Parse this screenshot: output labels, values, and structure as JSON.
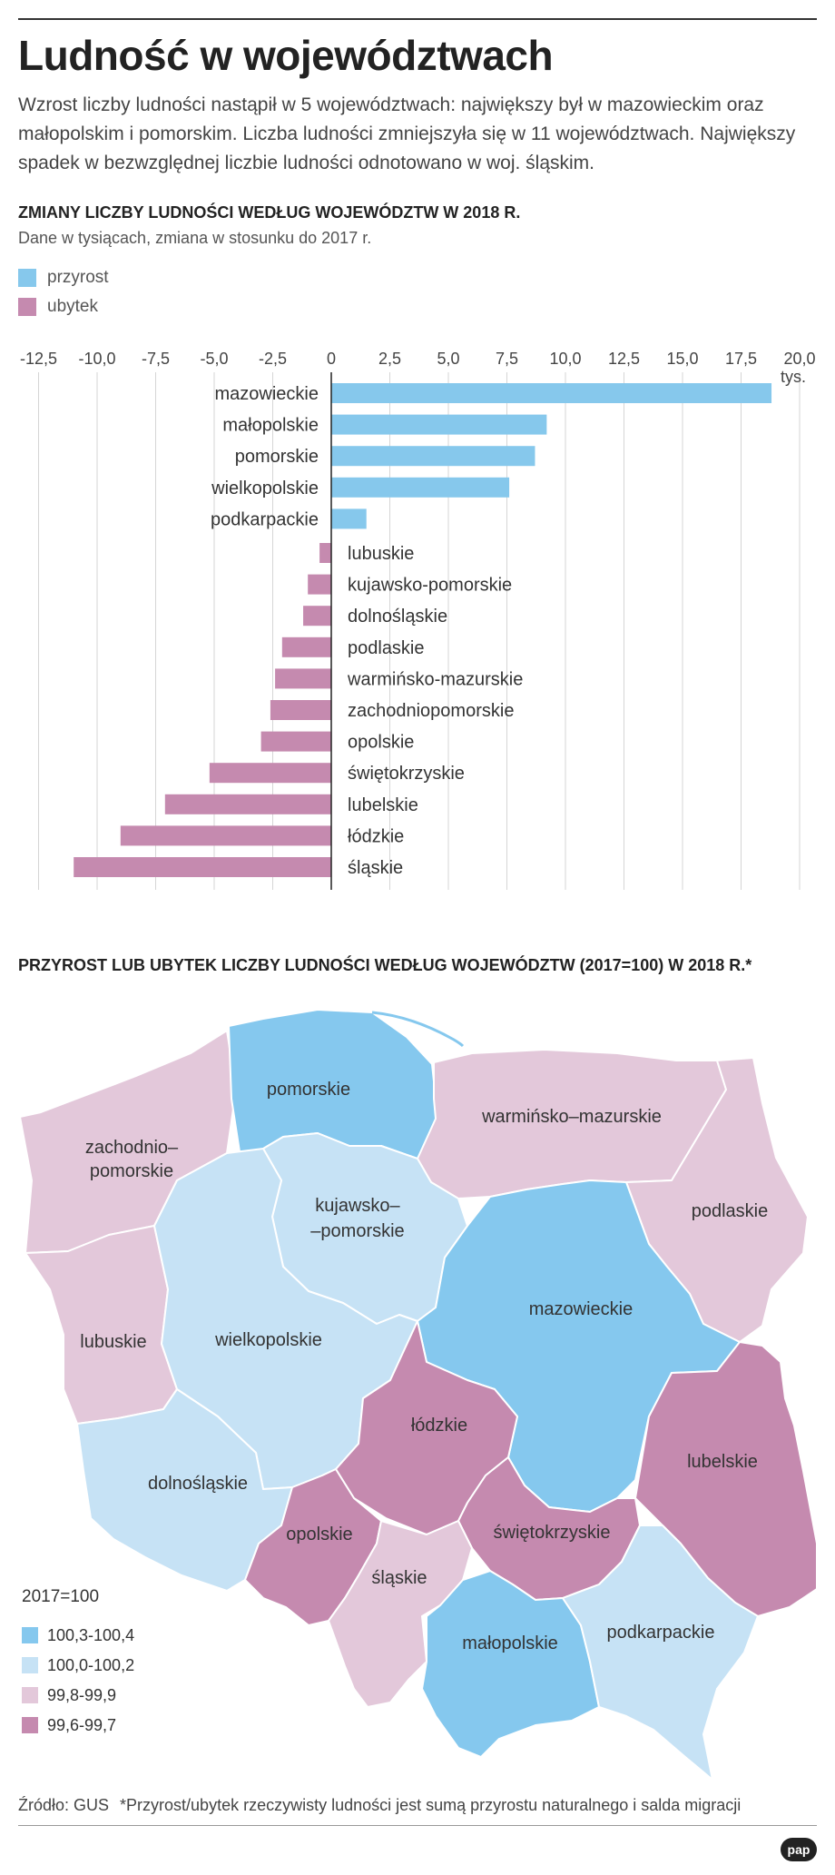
{
  "title": "Ludność w województwach",
  "lead": "Wzrost liczby ludności nastąpił w 5 województwach: największy był w mazowieckim oraz małopolskim i pomorskim. Liczba ludności zmniejszyła się w 11 województwach. Największy spadek w bezwzględnej liczbie ludności odnotowano w woj. śląskim.",
  "chart_section": {
    "title": "ZMIANY LICZBY LUDNOŚCI WEDŁUG WOJEWÓDZTW W 2018 R.",
    "subtitle": "Dane w tysiącach, zmiana w stosunku do 2017 r.",
    "legend": {
      "increase": "przyrost",
      "decrease": "ubytek"
    }
  },
  "colors": {
    "increase": "#86c8ec",
    "decrease": "#c58aaf",
    "map_100_3": "#85c8ee",
    "map_100_0": "#c6e2f5",
    "map_99_8": "#e3c8da",
    "map_99_6": "#c58aaf"
  },
  "chart_data": {
    "type": "bar",
    "orientation": "horizontal",
    "title": "ZMIANY LICZBY LUDNOŚCI WEDŁUG WOJEWÓDZTW W 2018 R.",
    "subtitle": "Dane w tysiącach, zmiana w stosunku do 2017 r.",
    "unit": "tys.",
    "xlim": [
      -12.5,
      20.0
    ],
    "ticks": [
      "-12,5",
      "-10,0",
      "-7,5",
      "-5,0",
      "-2,5",
      "0",
      "2,5",
      "5,0",
      "7,5",
      "10,0",
      "12,5",
      "15,0",
      "17,5",
      "20,0"
    ],
    "tick_values": [
      -12.5,
      -10,
      -7.5,
      -5,
      -2.5,
      0,
      2.5,
      5,
      7.5,
      10,
      12.5,
      15,
      17.5,
      20
    ],
    "grid": true,
    "categories": [
      "mazowieckie",
      "małopolskie",
      "pomorskie",
      "wielkopolskie",
      "podkarpackie",
      "lubuskie",
      "kujawsko-pomorskie",
      "dolnośląskie",
      "podlaskie",
      "warmińsko-mazurskie",
      "zachodniopomorskie",
      "opolskie",
      "świętokrzyskie",
      "lubelskie",
      "łódzkie",
      "śląskie"
    ],
    "values": [
      18.8,
      9.2,
      8.7,
      7.6,
      1.5,
      -0.5,
      -1.0,
      -1.2,
      -2.1,
      -2.4,
      -2.6,
      -3.0,
      -5.2,
      -7.1,
      -9.0,
      -11.0
    ]
  },
  "map_section": {
    "title": "PRZYROST LUB UBYTEK LICZBY LUDNOŚCI WEDŁUG WOJEWÓDZTW (2017=100) W 2018 R.*",
    "legend_title": "2017=100",
    "legend": [
      {
        "label": "100,3-100,4",
        "color": "#85c8ee"
      },
      {
        "label": "100,0-100,2",
        "color": "#c6e2f5"
      },
      {
        "label": "99,8-99,9",
        "color": "#e3c8da"
      },
      {
        "label": "99,6-99,7",
        "color": "#c58aaf"
      }
    ],
    "regions": {
      "pomorskie": "pomorskie",
      "warminsko_mazurskie": "warmińsko–mazurskie",
      "zachodniopomorskie_1": "zachodnio–",
      "zachodniopomorskie_2": "pomorskie",
      "kujawsko_pomorskie_1": "kujawsko–",
      "kujawsko_pomorskie_2": "–pomorskie",
      "podlaskie": "podlaskie",
      "mazowieckie": "mazowieckie",
      "lubuskie": "lubuskie",
      "wielkopolskie": "wielkopolskie",
      "lodzkie": "łódzkie",
      "lubelskie": "lubelskie",
      "dolnoslaskie": "dolnośląskie",
      "opolskie": "opolskie",
      "swietokrzyskie": "świętokrzyskie",
      "slaskie": "śląskie",
      "malopolskie": "małopolskie",
      "podkarpackie": "podkarpackie"
    }
  },
  "footer": {
    "source": "Źródło: GUS",
    "note": "*Przyrost/ubytek rzeczywisty ludności jest sumą przyrostu naturalnego i salda migracji",
    "logo": "pap"
  }
}
